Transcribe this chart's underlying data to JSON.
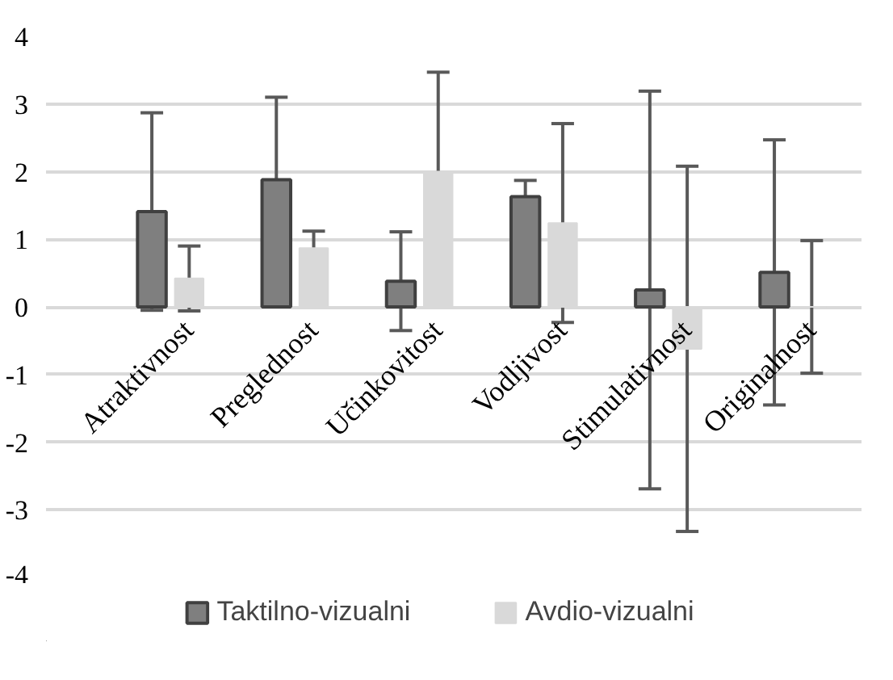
{
  "chart_data": {
    "type": "bar",
    "categories": [
      "Atraktivnost",
      "Preglednost",
      "Učinkovitost",
      "Vodljivost",
      "Stimulativnost",
      "Originalnost"
    ],
    "series": [
      {
        "name": "Taktilno-vizualni",
        "color": "#7f7f7f",
        "values": [
          1.41,
          1.88,
          0.38,
          1.63,
          0.25,
          0.51
        ],
        "errors": [
          1.46,
          1.22,
          0.73,
          0.24,
          2.94,
          1.96
        ]
      },
      {
        "name": "Avdio-vizualni",
        "color": "#d9d9d9",
        "values": [
          0.42,
          0.87,
          2.0,
          1.24,
          -0.62,
          0.0
        ],
        "errors": [
          0.48,
          0.25,
          1.47,
          1.47,
          2.7,
          0.98
        ]
      }
    ],
    "ylim": [
      -4,
      4
    ],
    "yticks": [
      -4,
      -3,
      -2,
      -1,
      0,
      1,
      2,
      3,
      4
    ],
    "grid": "y",
    "legend": "bottom"
  }
}
